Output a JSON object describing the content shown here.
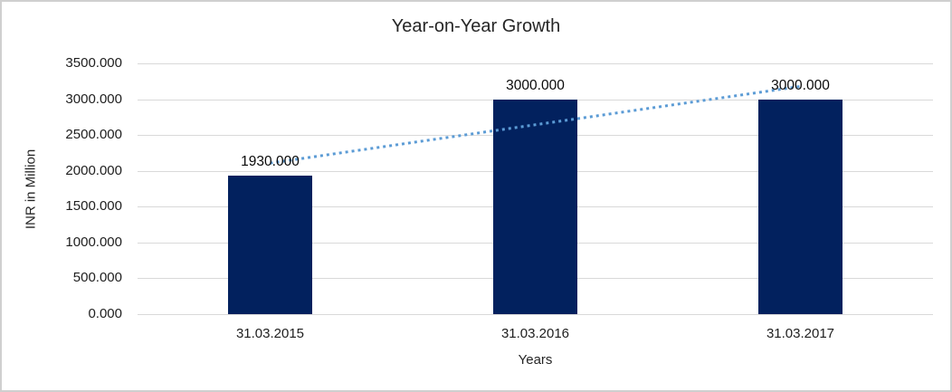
{
  "chart_data": {
    "type": "bar",
    "title": "Year-on-Year Growth",
    "xlabel": "Years",
    "ylabel": "INR in Million",
    "categories": [
      "31.03.2015",
      "31.03.2016",
      "31.03.2017"
    ],
    "values": [
      1930,
      3000,
      3000
    ],
    "data_labels": [
      "1930.000",
      "3000.000",
      "3000.000"
    ],
    "y_tick_labels": [
      "3500.000",
      "3000.000",
      "2500.000",
      "2000.000",
      "1500.000",
      "1000.000",
      "500.000",
      "0.000"
    ],
    "ylim": [
      0,
      3500
    ],
    "y_step": 500,
    "grid": true,
    "legend_position": "none",
    "bar_color": "#02215e",
    "gridline_color": "#d9d9d9",
    "trendline": {
      "kind": "linear",
      "style": "dotted",
      "color": "#5b9bd5"
    }
  }
}
